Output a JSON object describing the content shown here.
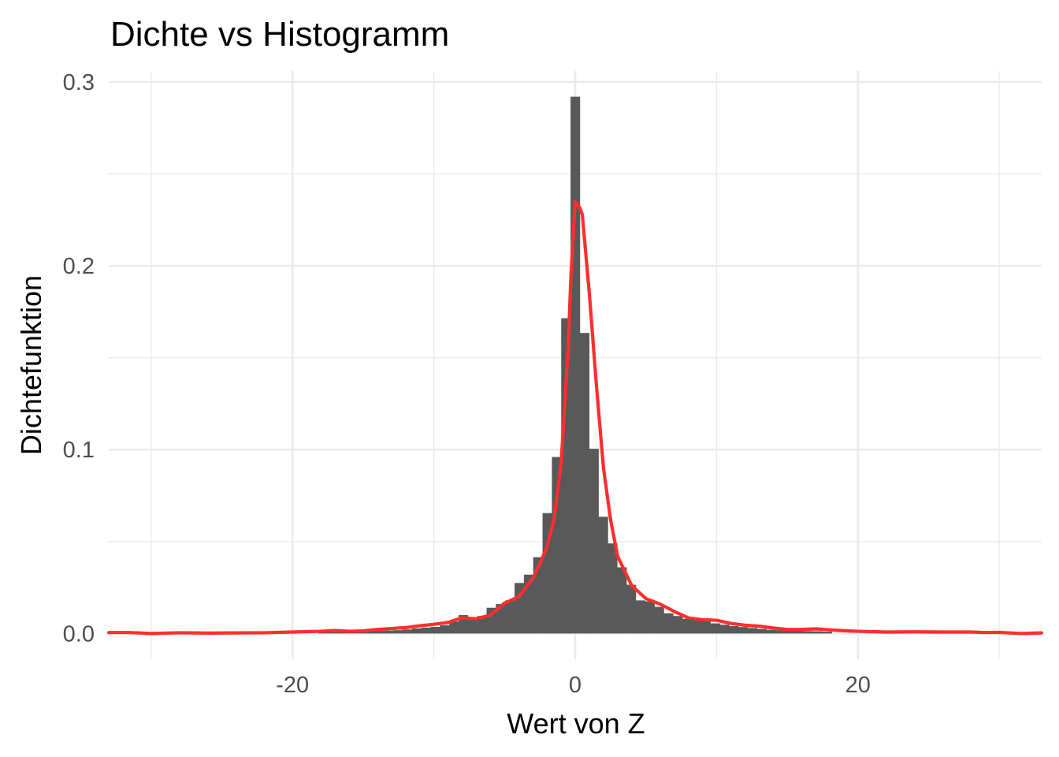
{
  "chart_data": {
    "type": "bar",
    "title": "Dichte vs Histogramm",
    "xlabel": "Wert von Z",
    "ylabel": "Dichtefunktion",
    "xlim": [
      -33,
      33
    ],
    "ylim": [
      -0.014,
      0.306
    ],
    "x_ticks": [
      -20,
      0,
      20
    ],
    "x_tick_labels": [
      "-20",
      "0",
      "20"
    ],
    "x_minor_ticks": [
      -30,
      -10,
      10,
      30
    ],
    "y_ticks": [
      0.0,
      0.1,
      0.2,
      0.3
    ],
    "y_tick_labels": [
      "0.0",
      "0.1",
      "0.2",
      "0.3"
    ],
    "y_minor_ticks": [
      0.05,
      0.15,
      0.25
    ],
    "grid": true,
    "histogram": {
      "bin_width": 0.66,
      "bins": [
        {
          "x": -17.82,
          "density": 0.0008
        },
        {
          "x": -17.16,
          "density": 0.0007
        },
        {
          "x": -16.5,
          "density": 0.0009
        },
        {
          "x": -15.84,
          "density": 0.0008
        },
        {
          "x": -15.18,
          "density": 0.0009
        },
        {
          "x": -14.52,
          "density": 0.0012
        },
        {
          "x": -13.86,
          "density": 0.0014
        },
        {
          "x": -13.2,
          "density": 0.0016
        },
        {
          "x": -12.54,
          "density": 0.0018
        },
        {
          "x": -11.88,
          "density": 0.0022
        },
        {
          "x": -11.22,
          "density": 0.0028
        },
        {
          "x": -10.56,
          "density": 0.0032
        },
        {
          "x": -9.9,
          "density": 0.0036
        },
        {
          "x": -9.24,
          "density": 0.0045
        },
        {
          "x": -8.58,
          "density": 0.0065
        },
        {
          "x": -7.92,
          "density": 0.01
        },
        {
          "x": -7.26,
          "density": 0.008
        },
        {
          "x": -6.6,
          "density": 0.0095
        },
        {
          "x": -5.94,
          "density": 0.014
        },
        {
          "x": -5.28,
          "density": 0.016
        },
        {
          "x": -4.62,
          "density": 0.018
        },
        {
          "x": -3.96,
          "density": 0.0275
        },
        {
          "x": -3.3,
          "density": 0.032
        },
        {
          "x": -2.64,
          "density": 0.0415
        },
        {
          "x": -1.98,
          "density": 0.0655
        },
        {
          "x": -1.32,
          "density": 0.096
        },
        {
          "x": -0.66,
          "density": 0.1715
        },
        {
          "x": 0.0,
          "density": 0.292
        },
        {
          "x": 0.66,
          "density": 0.1635
        },
        {
          "x": 1.32,
          "density": 0.1005
        },
        {
          "x": 1.98,
          "density": 0.0635
        },
        {
          "x": 2.64,
          "density": 0.049
        },
        {
          "x": 3.3,
          "density": 0.036
        },
        {
          "x": 3.96,
          "density": 0.0265
        },
        {
          "x": 4.62,
          "density": 0.018
        },
        {
          "x": 5.28,
          "density": 0.0175
        },
        {
          "x": 5.94,
          "density": 0.0145
        },
        {
          "x": 6.6,
          "density": 0.011
        },
        {
          "x": 7.26,
          "density": 0.0095
        },
        {
          "x": 7.92,
          "density": 0.008
        },
        {
          "x": 8.58,
          "density": 0.0075
        },
        {
          "x": 9.24,
          "density": 0.007
        },
        {
          "x": 9.9,
          "density": 0.0055
        },
        {
          "x": 10.56,
          "density": 0.0048
        },
        {
          "x": 11.22,
          "density": 0.004
        },
        {
          "x": 11.88,
          "density": 0.0035
        },
        {
          "x": 12.54,
          "density": 0.003
        },
        {
          "x": 13.2,
          "density": 0.0025
        },
        {
          "x": 13.86,
          "density": 0.002
        },
        {
          "x": 14.52,
          "density": 0.0018
        },
        {
          "x": 15.18,
          "density": 0.0016
        },
        {
          "x": 15.84,
          "density": 0.0014
        },
        {
          "x": 16.5,
          "density": 0.0013
        },
        {
          "x": 17.16,
          "density": 0.0012
        },
        {
          "x": 17.82,
          "density": 0.001
        }
      ]
    },
    "density_curve": {
      "color": "#ff2e2e",
      "x": [
        -33,
        -31.5,
        -30,
        -28,
        -26,
        -24,
        -22,
        -20,
        -18,
        -17,
        -16,
        -15,
        -14,
        -13,
        -12,
        -11,
        -10,
        -9,
        -8,
        -7,
        -6,
        -5,
        -4,
        -3,
        -2.5,
        -2,
        -1.5,
        -1,
        -0.5,
        -0.3,
        0,
        0.3,
        0.5,
        1,
        1.5,
        2,
        2.5,
        3,
        4,
        5,
        6,
        7,
        8,
        9,
        10,
        11,
        12,
        13,
        14,
        15,
        16,
        17,
        18,
        19,
        20,
        22,
        24,
        26,
        28,
        29,
        30,
        31.5,
        33
      ],
      "y": [
        0.0005,
        0.0005,
        0.0,
        0.0004,
        0.0002,
        0.0003,
        0.0004,
        0.0008,
        0.0012,
        0.0016,
        0.0012,
        0.0014,
        0.0022,
        0.0027,
        0.0032,
        0.0042,
        0.005,
        0.006,
        0.0085,
        0.008,
        0.01,
        0.0165,
        0.02,
        0.03,
        0.038,
        0.047,
        0.062,
        0.092,
        0.155,
        0.195,
        0.235,
        0.232,
        0.228,
        0.185,
        0.135,
        0.09,
        0.062,
        0.042,
        0.026,
        0.019,
        0.016,
        0.012,
        0.0085,
        0.0075,
        0.0072,
        0.0055,
        0.0045,
        0.004,
        0.003,
        0.0022,
        0.0022,
        0.0025,
        0.002,
        0.0015,
        0.0012,
        0.0008,
        0.0009,
        0.0008,
        0.0008,
        0.0005,
        0.0006,
        0.0,
        0.0003
      ]
    }
  },
  "colors": {
    "bar_fill": "#595959",
    "curve": "#ff2e2e",
    "grid": "#ebebeb",
    "tick_text": "#4d4d4d",
    "text": "#000000"
  }
}
